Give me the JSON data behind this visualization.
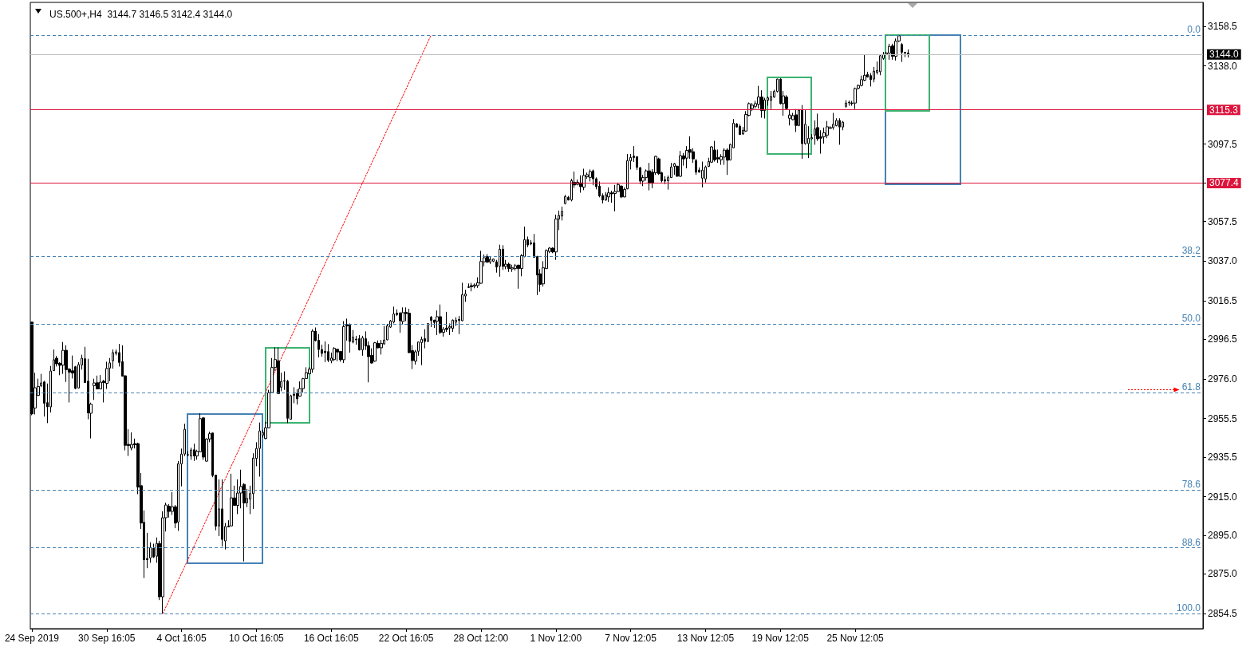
{
  "chart_data": {
    "type": "candlestick",
    "title": "US.500+,H4  3144.7 3146.5 3142.4 3144.0",
    "color": "#000000",
    "categories": [
      "24 Sep 2019",
      null,
      null,
      null,
      null,
      null,
      null,
      null,
      null,
      null,
      null,
      null,
      null,
      null,
      null,
      null,
      null,
      null,
      null,
      null,
      null,
      null,
      null,
      null,
      "30 Sep 16:05",
      null,
      null,
      null,
      null,
      null,
      null,
      null,
      null,
      null,
      null,
      null,
      null,
      null,
      null,
      null,
      null,
      null,
      null,
      null,
      null,
      null,
      null,
      null,
      "4 Oct 16:05",
      null,
      null,
      null,
      null,
      null,
      null,
      null,
      null,
      null,
      null,
      null,
      null,
      null,
      null,
      null,
      null,
      null,
      null,
      null,
      null,
      null,
      null,
      null,
      "10 Oct 16:05",
      null,
      null,
      null,
      null,
      null,
      null,
      null,
      null,
      null,
      null,
      null,
      null,
      null,
      null,
      null,
      null,
      null,
      null,
      null,
      null,
      null,
      null,
      null,
      "16 Oct 16:05",
      null,
      null,
      null,
      null,
      null,
      null,
      null,
      null,
      null,
      null,
      null,
      null,
      null,
      null,
      null,
      null,
      null,
      null,
      null,
      null,
      null,
      null,
      null,
      "22 Oct 16:05",
      null,
      null,
      null,
      null,
      null,
      null,
      null,
      null,
      null,
      null,
      null,
      null,
      null,
      null,
      null,
      null,
      null,
      null,
      null,
      null,
      null,
      null,
      null,
      "28 Oct 12:00",
      null,
      null,
      null,
      null,
      null,
      null,
      null,
      null,
      null,
      null,
      null,
      null,
      null,
      null,
      null,
      null,
      null,
      null,
      null,
      null,
      null,
      null,
      null,
      "1 Nov 12:00",
      null,
      null,
      null,
      null,
      null,
      null,
      null,
      null,
      null,
      null,
      null,
      null,
      null,
      null,
      null,
      null,
      null,
      null,
      null,
      null,
      null,
      null,
      null,
      "7 Nov 12:05",
      null,
      null,
      null,
      null,
      null,
      null,
      null,
      null,
      null,
      null,
      null,
      null,
      null,
      null,
      null,
      null,
      null,
      null,
      null,
      null,
      null,
      null,
      null,
      "13 Nov 12:05",
      null,
      null,
      null,
      null,
      null,
      null,
      null,
      null,
      null,
      null,
      null,
      null,
      null,
      null,
      null,
      null,
      null,
      null,
      null,
      null,
      null,
      null,
      null,
      "19 Nov 12:05",
      null,
      null,
      null,
      null,
      null,
      null,
      null,
      null,
      null,
      null,
      null,
      null,
      null,
      null,
      null,
      null,
      null,
      null,
      null,
      null,
      null,
      null,
      null,
      "25 Nov 12:05",
      null,
      null,
      null,
      null,
      null,
      null,
      null,
      null,
      null,
      null,
      null,
      null,
      null,
      null,
      null,
      null,
      null,
      null,
      null,
      null,
      null,
      null,
      null,
      null,
      null,
      null,
      null,
      null,
      null,
      null,
      null,
      null,
      null,
      null,
      null,
      null,
      null,
      null,
      null,
      null,
      null,
      null,
      null,
      null,
      null,
      null,
      null,
      null,
      null,
      null,
      null,
      null,
      null,
      null,
      null,
      null,
      null,
      null,
      null,
      null,
      null,
      null,
      null,
      null,
      null,
      null,
      null,
      null,
      null,
      null,
      null,
      null,
      null,
      null,
      null,
      null,
      null,
      null,
      null,
      null,
      null,
      null,
      null,
      null,
      null,
      null,
      null,
      null,
      null,
      null,
      null,
      null,
      null,
      null,
      null,
      null,
      null,
      null,
      null,
      null,
      null,
      null,
      null,
      null,
      null,
      null,
      null,
      null,
      null,
      null,
      null
    ],
    "ohlc": [
      [
        3005.4,
        3005.6,
        2957.2,
        2957.9
      ],
      [
        2960.9,
        2979.2,
        2957.6,
        2971.4
      ],
      [
        2967.5,
        2976.1,
        2967.1,
        2972.1
      ],
      [
        2972.5,
        2978.6,
        2971.7,
        2973.9
      ],
      [
        2974.4,
        2975.0,
        2956.5,
        2963.4
      ],
      [
        2963.7,
        2973.6,
        2953.1,
        2961.5
      ],
      [
        2961.5,
        2982.7,
        2958.6,
        2980.1
      ],
      [
        2980.3,
        2991.2,
        2980.1,
        2985.9
      ],
      [
        2986.7,
        2987.9,
        2982.4,
        2983.8
      ],
      [
        2984.1,
        2984.6,
        2977.9,
        2983.0
      ],
      [
        2983.1,
        2995.1,
        2978.6,
        2990.8
      ],
      [
        2990.8,
        2993.4,
        2974.4,
        2980.8
      ],
      [
        2981.0,
        2981.6,
        2963.8,
        2979.5
      ],
      [
        2980.2,
        2988.1,
        2976.2,
        2979.0
      ],
      [
        2982.3,
        2982.7,
        2970.6,
        2971.1
      ],
      [
        2971.3,
        2984.6,
        2971.0,
        2983.4
      ],
      [
        2983.2,
        2988.5,
        2980.8,
        2986.7
      ],
      [
        2986.4,
        2992.6,
        2973.9,
        2974.1
      ],
      [
        2974.8,
        2986.4,
        2955.1,
        2958.4
      ],
      [
        2958.2,
        2963.7,
        2945.2,
        2962.9
      ],
      [
        2972.5,
        2976.1,
        2965.1,
        2973.9
      ],
      [
        2974.0,
        2977.7,
        2970.6,
        2970.8
      ],
      [
        2970.8,
        2978.0,
        2970.6,
        2974.3
      ],
      [
        2974.8,
        2975.5,
        2963.8,
        2974.1
      ],
      [
        2973.7,
        2984.9,
        2970.8,
        2981.4
      ],
      [
        2981.6,
        2986.8,
        2974.8,
        2984.3
      ],
      [
        2985.4,
        2991.2,
        2981.3,
        2989.6
      ],
      [
        2989.2,
        2991.2,
        2988.2,
        2990.0
      ],
      [
        2989.6,
        2994.1,
        2982.4,
        2984.5
      ],
      [
        2985.0,
        2993.4,
        2977.2,
        2977.4
      ],
      [
        2977.6,
        2977.8,
        2939.0,
        2941.6
      ],
      [
        2942.1,
        2950.0,
        2936.1,
        2941.5
      ],
      [
        2940.3,
        2948.3,
        2939.0,
        2942.1
      ],
      [
        2942.5,
        2945.1,
        2940.0,
        2941.9
      ],
      [
        2942.5,
        2943.0,
        2916.3,
        2920.0
      ],
      [
        2920.7,
        2927.3,
        2898.3,
        2901.4
      ],
      [
        2901.7,
        2907.9,
        2872.9,
        2882.4
      ],
      [
        2883.0,
        2896.3,
        2878.0,
        2882.4
      ],
      [
        2883.3,
        2891.4,
        2880.8,
        2888.8
      ],
      [
        2888.4,
        2890.7,
        2883.3,
        2883.8
      ],
      [
        2884.2,
        2893.9,
        2880.8,
        2890.8
      ],
      [
        2890.8,
        2892.2,
        2861.5,
        2863.2
      ],
      [
        2863.2,
        2907.5,
        2854.5,
        2904.1
      ],
      [
        2904.1,
        2911.9,
        2897.0,
        2910.7
      ],
      [
        2910.1,
        2911.2,
        2904.2,
        2907.4
      ],
      [
        2907.4,
        2917.4,
        2905.6,
        2909.8
      ],
      [
        2909.8,
        2910.7,
        2898.7,
        2901.4
      ],
      [
        2901.9,
        2933.5,
        2897.3,
        2932.1
      ],
      [
        2932.0,
        2939.9,
        2920.4,
        2937.1
      ],
      [
        2937.1,
        2952.8,
        2936.1,
        2949.9
      ],
      [
        2936.6,
        2938.6,
        2935.9,
        2936.8
      ],
      [
        2936.1,
        2940.4,
        2934.1,
        2939.2
      ],
      [
        2939.3,
        2942.5,
        2933.5,
        2936.1
      ],
      [
        2936.1,
        2939.3,
        2934.2,
        2938.5
      ],
      [
        2938.3,
        2958.2,
        2938.1,
        2955.4
      ],
      [
        2955.8,
        2956.2,
        2934.1,
        2935.5
      ],
      [
        2933.4,
        2945.2,
        2933.2,
        2944.9
      ],
      [
        2944.9,
        2948.7,
        2943.2,
        2947.6
      ],
      [
        2948.0,
        2948.2,
        2925.1,
        2926.0
      ],
      [
        2926.2,
        2926.4,
        2897.6,
        2899.8
      ],
      [
        2899.9,
        2924.0,
        2894.6,
        2908.7
      ],
      [
        2908.7,
        2924.0,
        2889.3,
        2892.9
      ],
      [
        2892.1,
        2901.4,
        2887.7,
        2899.6
      ],
      [
        2899.9,
        2902.8,
        2899.2,
        2899.4
      ],
      [
        2899.9,
        2926.9,
        2899.7,
        2914.4
      ],
      [
        2914.4,
        2920.7,
        2910.3,
        2910.5
      ],
      [
        2910.5,
        2924.0,
        2906.0,
        2916.9
      ],
      [
        2916.9,
        2929.0,
        2909.0,
        2920.3
      ],
      [
        2921.4,
        2922.0,
        2881.5,
        2911.8
      ],
      [
        2911.9,
        2919.1,
        2909.6,
        2914.1
      ],
      [
        2913.8,
        2920.7,
        2906.0,
        2916.6
      ],
      [
        2916.6,
        2937.5,
        2908.6,
        2935.0
      ],
      [
        2934.8,
        2943.2,
        2930.8,
        2940.0
      ],
      [
        2940.0,
        2953.4,
        2925.4,
        2949.1
      ],
      [
        2946.9,
        2949.6,
        2945.5,
        2948.3
      ],
      [
        2945.1,
        2953.8,
        2944.8,
        2950.7
      ],
      [
        2950.7,
        2970.3,
        2950.5,
        2968.9
      ],
      [
        2968.9,
        2986.8,
        2968.7,
        2981.9
      ],
      [
        2981.9,
        2992.3,
        2979.9,
        2986.0
      ],
      [
        2985.4,
        2992.3,
        2968.1,
        2968.4
      ],
      [
        2971.7,
        2979.2,
        2969.6,
        2974.7
      ],
      [
        2974.8,
        2979.9,
        2970.3,
        2975.1
      ],
      [
        2974.8,
        2975.5,
        2953.1,
        2955.6
      ],
      [
        2955.1,
        2967.8,
        2954.9,
        2967.3
      ],
      [
        2968.1,
        2971.7,
        2963.4,
        2967.5
      ],
      [
        2968.5,
        2970.6,
        2962.7,
        2965.7
      ],
      [
        2967.1,
        2974.7,
        2966.8,
        2971.0
      ],
      [
        2971.0,
        2976.5,
        2968.9,
        2976.1
      ],
      [
        2976.2,
        2982.0,
        2976.0,
        2979.2
      ],
      [
        2978.6,
        2982.0,
        2978.4,
        2981.0
      ],
      [
        2981.0,
        3001.7,
        2979.2,
        3000.7
      ],
      [
        3000.7,
        3002.6,
        2995.4,
        2995.8
      ],
      [
        2996.0,
        2999.2,
        2987.1,
        2991.2
      ],
      [
        2991.2,
        2993.7,
        2987.5,
        2989.2
      ],
      [
        2990.3,
        2995.4,
        2984.7,
        2989.6
      ],
      [
        2990.1,
        2994.0,
        2984.7,
        2985.7
      ],
      [
        2985.4,
        2989.6,
        2984.1,
        2986.8
      ],
      [
        2986.0,
        2992.4,
        2985.2,
        2991.8
      ],
      [
        2991.3,
        2991.5,
        2985.2,
        2989.9
      ],
      [
        2990.2,
        2990.4,
        2984.9,
        2985.9
      ],
      [
        2985.9,
        3005.9,
        2984.2,
        3003.1
      ],
      [
        3004.1,
        3007.2,
        2995.8,
        3003.4
      ],
      [
        3003.8,
        3004.7,
        2989.6,
        2995.4
      ],
      [
        2995.1,
        3001.3,
        2994.4,
        2997.6
      ],
      [
        2996.6,
        2998.3,
        2993.7,
        2996.2
      ],
      [
        2996.8,
        2998.7,
        2990.7,
        2991.0
      ],
      [
        2991.0,
        2998.3,
        2988.0,
        2997.2
      ],
      [
        2996.8,
        3000.6,
        2991.0,
        2993.0
      ],
      [
        2993.2,
        2995.4,
        2974.2,
        2987.5
      ],
      [
        2988.2,
        2991.8,
        2984.0,
        2984.2
      ],
      [
        2985.2,
        2995.1,
        2984.9,
        2994.7
      ],
      [
        2994.4,
        2995.9,
        2991.8,
        2992.1
      ],
      [
        2992.1,
        2996.2,
        2988.6,
        2994.4
      ],
      [
        2994.1,
        3003.4,
        2993.7,
        2996.1
      ],
      [
        2996.2,
        3004.5,
        2996.0,
        3003.5
      ],
      [
        3002.8,
        3006.5,
        3002.4,
        3006.0
      ],
      [
        3005.4,
        3013.4,
        3004.7,
        3009.6
      ],
      [
        3010.0,
        3012.0,
        3008.6,
        3009.3
      ],
      [
        3010.0,
        3010.7,
        2999.9,
        3006.1
      ],
      [
        3005.7,
        3013.0,
        3004.2,
        3010.3
      ],
      [
        3010.5,
        3013.0,
        3005.9,
        3009.8
      ],
      [
        3010.0,
        3012.3,
        2989.4,
        2989.6
      ],
      [
        2990.6,
        2993.5,
        2981.1,
        2985.5
      ],
      [
        2985.2,
        2991.0,
        2983.4,
        2990.0
      ],
      [
        2990.3,
        2995.3,
        2988.0,
        2995.1
      ],
      [
        2994.8,
        2997.9,
        2983.1,
        2996.5
      ],
      [
        2996.8,
        3001.7,
        2991.8,
        2995.4
      ],
      [
        2995.4,
        3004.9,
        2995.2,
        3004.6
      ],
      [
        3007.9,
        3008.6,
        3002.8,
        3006.3
      ],
      [
        3006.4,
        3006.6,
        3002.4,
        3005.2
      ],
      [
        3005.9,
        3011.4,
        2998.7,
        3008.2
      ],
      [
        3008.2,
        3014.5,
        2999.2,
        3000.1
      ],
      [
        3000.1,
        3002.8,
        2997.9,
        3001.7
      ],
      [
        3002.3,
        3010.7,
        3000.3,
        3001.6
      ],
      [
        3002.4,
        3004.7,
        2998.7,
        3003.1
      ],
      [
        3002.1,
        3006.8,
        3000.3,
        3006.4
      ],
      [
        3005.3,
        3007.9,
        3003.4,
        3006.4
      ],
      [
        3006.8,
        3008.6,
        2999.2,
        3006.3
      ],
      [
        3006.1,
        3025.8,
        3005.9,
        3019.6
      ],
      [
        3018.9,
        3022.1,
        3015.9,
        3020.0
      ],
      [
        3023.3,
        3025.4,
        3023.1,
        3023.7
      ],
      [
        3024.3,
        3025.7,
        3021.3,
        3023.7
      ],
      [
        3024.0,
        3025.4,
        3022.9,
        3024.6
      ],
      [
        3024.3,
        3028.6,
        3023.1,
        3025.8
      ],
      [
        3025.5,
        3042.3,
        3025.3,
        3036.8
      ],
      [
        3036.6,
        3040.4,
        3034.2,
        3038.7
      ],
      [
        3039.3,
        3040.6,
        3036.0,
        3036.5
      ],
      [
        3036.5,
        3039.3,
        3035.5,
        3037.9
      ],
      [
        3036.9,
        3038.3,
        3036.5,
        3038.0
      ],
      [
        3036.6,
        3037.6,
        3031.0,
        3033.9
      ],
      [
        3034.3,
        3045.5,
        3028.9,
        3043.1
      ],
      [
        3043.1,
        3045.2,
        3032.4,
        3034.2
      ],
      [
        3034.2,
        3037.6,
        3032.8,
        3035.4
      ],
      [
        3035.4,
        3036.2,
        3031.4,
        3033.1
      ],
      [
        3032.9,
        3035.1,
        3031.4,
        3033.5
      ],
      [
        3033.1,
        3035.5,
        3032.1,
        3034.6
      ],
      [
        3034.9,
        3035.1,
        3022.7,
        3033.1
      ],
      [
        3033.1,
        3040.6,
        3029.1,
        3039.8
      ],
      [
        3039.3,
        3054.8,
        3039.0,
        3048.1
      ],
      [
        3048.1,
        3049.7,
        3044.2,
        3045.3
      ],
      [
        3045.9,
        3047.9,
        3045.2,
        3046.5
      ],
      [
        3046.4,
        3051.0,
        3038.7,
        3039.0
      ],
      [
        3039.3,
        3039.7,
        3019.4,
        3029.8
      ],
      [
        3030.4,
        3032.8,
        3021.1,
        3024.9
      ],
      [
        3025.2,
        3036.9,
        3023.8,
        3033.5
      ],
      [
        3033.1,
        3043.1,
        3032.9,
        3042.4
      ],
      [
        3042.0,
        3044.2,
        3041.1,
        3043.7
      ],
      [
        3043.7,
        3044.1,
        3041.1,
        3041.7
      ],
      [
        3041.7,
        3061.0,
        3037.6,
        3058.8
      ],
      [
        3058.7,
        3063.1,
        3053.0,
        3060.6
      ],
      [
        3060.3,
        3065.2,
        3058.0,
        3062.7
      ],
      [
        3066.8,
        3071.3,
        3066.3,
        3070.4
      ],
      [
        3070.0,
        3070.7,
        3068.4,
        3068.6
      ],
      [
        3068.6,
        3079.6,
        3067.9,
        3078.6
      ],
      [
        3077.8,
        3083.3,
        3074.8,
        3076.4
      ],
      [
        3076.7,
        3079.2,
        3076.2,
        3077.8
      ],
      [
        3077.5,
        3081.4,
        3072.4,
        3075.5
      ],
      [
        3075.2,
        3084.8,
        3073.7,
        3081.3
      ],
      [
        3080.6,
        3082.8,
        3079.6,
        3081.7
      ],
      [
        3080.3,
        3084.4,
        3078.2,
        3083.3
      ],
      [
        3083.7,
        3084.4,
        3076.2,
        3079.6
      ],
      [
        3079.6,
        3080.3,
        3074.1,
        3075.5
      ],
      [
        3075.8,
        3078.2,
        3070.0,
        3070.7
      ],
      [
        3070.9,
        3072.0,
        3066.8,
        3068.6
      ],
      [
        3068.6,
        3072.7,
        3068.2,
        3071.3
      ],
      [
        3070.2,
        3075.1,
        3067.6,
        3072.3
      ],
      [
        3072.3,
        3073.4,
        3067.2,
        3071.8
      ],
      [
        3072.0,
        3076.4,
        3062.7,
        3073.0
      ],
      [
        3073.0,
        3077.3,
        3072.7,
        3076.6
      ],
      [
        3075.8,
        3076.2,
        3069.6,
        3070.2
      ],
      [
        3070.2,
        3075.1,
        3070.0,
        3074.1
      ],
      [
        3074.4,
        3092.4,
        3074.1,
        3089.0
      ],
      [
        3088.8,
        3092.4,
        3084.4,
        3090.6
      ],
      [
        3091.3,
        3096.5,
        3088.3,
        3090.6
      ],
      [
        3091.0,
        3091.2,
        3084.1,
        3085.5
      ],
      [
        3085.3,
        3085.7,
        3076.8,
        3078.4
      ],
      [
        3078.4,
        3081.6,
        3075.8,
        3080.2
      ],
      [
        3080.2,
        3084.4,
        3078.6,
        3083.7
      ],
      [
        3083.7,
        3087.8,
        3073.6,
        3077.2
      ],
      [
        3083.0,
        3084.6,
        3074.7,
        3077.2
      ],
      [
        3082.7,
        3091.5,
        3081.6,
        3091.2
      ],
      [
        3089.9,
        3090.5,
        3081.6,
        3082.3
      ],
      [
        3082.7,
        3083.2,
        3077.7,
        3078.6
      ],
      [
        3079.1,
        3080.9,
        3076.8,
        3078.4
      ],
      [
        3078.6,
        3081.3,
        3074.0,
        3080.2
      ],
      [
        3080.2,
        3087.8,
        3080.0,
        3085.7
      ],
      [
        3086.0,
        3087.8,
        3081.6,
        3087.4
      ],
      [
        3086.1,
        3086.4,
        3080.7,
        3080.9
      ],
      [
        3080.9,
        3094.0,
        3080.5,
        3091.5
      ],
      [
        3091.5,
        3092.9,
        3086.4,
        3089.9
      ],
      [
        3090.3,
        3096.5,
        3085.0,
        3094.3
      ],
      [
        3094.7,
        3101.6,
        3089.9,
        3093.3
      ],
      [
        3093.6,
        3095.4,
        3087.8,
        3089.9
      ],
      [
        3089.0,
        3089.9,
        3081.6,
        3083.0
      ],
      [
        3084.1,
        3085.5,
        3082.8,
        3083.0
      ],
      [
        3079.9,
        3088.5,
        3075.1,
        3084.1
      ],
      [
        3079.5,
        3086.4,
        3077.7,
        3085.7
      ],
      [
        3086.0,
        3090.5,
        3085.7,
        3088.5
      ],
      [
        3088.2,
        3096.5,
        3087.8,
        3096.1
      ],
      [
        3094.5,
        3099.2,
        3088.5,
        3089.4
      ],
      [
        3090.5,
        3094.7,
        3087.8,
        3089.9
      ],
      [
        3089.4,
        3092.3,
        3086.8,
        3091.0
      ],
      [
        3090.8,
        3095.4,
        3086.8,
        3094.4
      ],
      [
        3094.5,
        3095.4,
        3081.6,
        3089.2
      ],
      [
        3089.3,
        3097.8,
        3089.1,
        3097.4
      ],
      [
        3095.6,
        3110.5,
        3095.4,
        3108.4
      ],
      [
        3108.0,
        3108.4,
        3106.1,
        3106.4
      ],
      [
        3106.7,
        3107.8,
        3102.3,
        3102.5
      ],
      [
        3102.8,
        3106.4,
        3102.3,
        3104.7
      ],
      [
        3104.3,
        3114.6,
        3103.9,
        3112.9
      ],
      [
        3112.4,
        3119.1,
        3111.9,
        3118.5
      ],
      [
        3116.0,
        3118.8,
        3114.6,
        3117.7
      ],
      [
        3117.1,
        3119.9,
        3116.0,
        3118.5
      ],
      [
        3118.1,
        3127.7,
        3116.0,
        3121.9
      ],
      [
        3121.9,
        3125.4,
        3111.2,
        3114.9
      ],
      [
        3114.9,
        3121.5,
        3110.8,
        3120.4
      ],
      [
        3120.2,
        3122.2,
        3117.4,
        3121.5
      ],
      [
        3120.2,
        3125.0,
        3115.7,
        3122.2
      ],
      [
        3121.9,
        3125.7,
        3121.5,
        3124.8
      ],
      [
        3124.8,
        3131.4,
        3124.3,
        3131.2
      ],
      [
        3131.2,
        3131.6,
        3118.1,
        3118.5
      ],
      [
        3118.5,
        3125.0,
        3112.2,
        3122.5
      ],
      [
        3121.9,
        3122.9,
        3115.3,
        3116.0
      ],
      [
        3110.9,
        3115.3,
        3107.2,
        3112.6
      ],
      [
        3110.2,
        3113.7,
        3109.9,
        3112.3
      ],
      [
        3112.7,
        3115.7,
        3103.8,
        3107.2
      ],
      [
        3107.2,
        3115.7,
        3106.8,
        3115.1
      ],
      [
        3115.1,
        3117.8,
        3089.9,
        3097.8
      ],
      [
        3097.8,
        3115.1,
        3097.2,
        3107.8
      ],
      [
        3097.8,
        3106.8,
        3090.3,
        3100.6
      ],
      [
        3100.3,
        3102.7,
        3099.9,
        3100.9
      ],
      [
        3102.2,
        3109.8,
        3097.2,
        3105.4
      ],
      [
        3106.1,
        3113.3,
        3099.2,
        3100.3
      ],
      [
        3101.3,
        3104.7,
        3092.6,
        3100.6
      ],
      [
        3101.3,
        3106.1,
        3097.8,
        3103.4
      ],
      [
        3102.2,
        3109.5,
        3100.6,
        3106.5
      ],
      [
        3105.7,
        3106.8,
        3105.4,
        3106.1
      ],
      [
        3106.1,
        3113.7,
        3105.0,
        3107.8
      ],
      [
        3107.1,
        3110.9,
        3106.7,
        3109.8
      ],
      [
        3109.8,
        3110.9,
        3097.2,
        3106.4
      ],
      [
        3106.4,
        3109.5,
        3104.7,
        3108.9
      ],
      [
        3117.1,
        3120.3,
        3116.4,
        3118.8
      ],
      [
        3118.9,
        3120.1,
        3117.4,
        3119.2
      ],
      [
        3118.8,
        3119.9,
        3117.4,
        3118.5
      ],
      [
        3118.8,
        3126.8,
        3115.7,
        3126.3
      ],
      [
        3126.5,
        3128.4,
        3125.7,
        3127.9
      ],
      [
        3127.9,
        3133.0,
        3127.4,
        3130.9
      ],
      [
        3130.6,
        3144.0,
        3130.2,
        3133.2
      ],
      [
        3133.6,
        3135.0,
        3132.0,
        3132.3
      ],
      [
        3133.0,
        3134.3,
        3127.4,
        3130.9
      ],
      [
        3131.2,
        3137.5,
        3129.5,
        3135.3
      ],
      [
        3134.7,
        3140.3,
        3133.6,
        3135.7
      ],
      [
        3135.0,
        3144.0,
        3133.2,
        3143.3
      ],
      [
        3141.9,
        3145.3,
        3141.2,
        3144.0
      ],
      [
        3144.0,
        3145.3,
        3143.6,
        3144.7
      ],
      [
        3144.7,
        3149.5,
        3141.2,
        3148.1
      ],
      [
        3148.4,
        3149.5,
        3141.2,
        3143.0
      ],
      [
        3143.0,
        3152.2,
        3140.8,
        3150.9
      ],
      [
        3150.9,
        3154.0,
        3150.4,
        3153.6
      ],
      [
        3149.1,
        3149.9,
        3140.1,
        3145.1
      ],
      [
        3145.1,
        3145.3,
        3142.6,
        3144.7
      ],
      [
        3144.7,
        3146.5,
        3142.4,
        3144.0
      ],
      null,
      null,
      null,
      null,
      null,
      null,
      null,
      null,
      null,
      null,
      null,
      null,
      null,
      null,
      null,
      null,
      null,
      null,
      null,
      null,
      null,
      null,
      null,
      null,
      null,
      null,
      null,
      null,
      null,
      null,
      null,
      null,
      null,
      null,
      null,
      null,
      null,
      null,
      null,
      null,
      null,
      null,
      null,
      null,
      null,
      null,
      null,
      null,
      null,
      null,
      null,
      null,
      null,
      null,
      null,
      null,
      null,
      null,
      null,
      null,
      null,
      null,
      null,
      null,
      null,
      null,
      null,
      null,
      null,
      null,
      null,
      null,
      null,
      null,
      null,
      null,
      null,
      null,
      null,
      null,
      null,
      null,
      null,
      null,
      null,
      null,
      null,
      null,
      null,
      null,
      null,
      null,
      null,
      null
    ],
    "series": [
      {
        "type": "line",
        "color": "#ff0000",
        "line_style": "dotted",
        "marker": "none",
        "values": [
          null,
          null,
          null,
          null,
          null,
          null,
          null,
          null,
          null,
          null,
          null,
          null,
          null,
          null,
          null,
          null,
          null,
          null,
          null,
          null,
          null,
          null,
          null,
          null,
          null,
          null,
          null,
          null,
          null,
          null,
          null,
          null,
          null,
          null,
          null,
          null,
          null,
          null,
          null,
          null,
          null,
          null,
          2854.5,
          null,
          null,
          null,
          null,
          null,
          null,
          null,
          null,
          null,
          null,
          null,
          null,
          null,
          null,
          null,
          null,
          null,
          null,
          null,
          null,
          null,
          null,
          null,
          null,
          null,
          null,
          null,
          null,
          null,
          null,
          null,
          null,
          null,
          null,
          null,
          null,
          null,
          null,
          null,
          null,
          null,
          null,
          null,
          null,
          null,
          null,
          null,
          null,
          null,
          null,
          null,
          null,
          null,
          null,
          null,
          null,
          null,
          null,
          null,
          null,
          null,
          null,
          null,
          null,
          null,
          null,
          null,
          null,
          null,
          null,
          null,
          null,
          null,
          null,
          null,
          null,
          null,
          null,
          null,
          null,
          null,
          null,
          null,
          null,
          null,
          3154.0,
          null,
          null,
          null,
          null,
          null,
          null,
          null,
          null,
          null,
          null,
          null,
          null,
          null,
          null,
          null,
          null,
          null,
          null,
          null,
          null,
          null,
          null,
          null,
          null,
          null,
          null,
          null,
          null,
          null,
          null,
          null,
          null,
          null,
          null,
          null,
          null,
          null,
          null,
          null,
          null,
          null,
          null,
          null,
          null,
          null,
          null,
          null,
          null,
          null,
          null,
          null,
          null,
          null,
          null,
          null,
          null,
          null,
          null,
          null,
          null,
          null,
          null,
          null,
          null,
          null,
          null,
          null,
          null,
          null,
          null,
          null,
          null,
          null,
          null,
          null,
          null,
          null,
          null,
          null,
          null,
          null,
          null,
          null,
          null,
          null,
          null,
          null,
          null,
          null,
          null,
          null,
          null,
          null,
          null,
          null,
          null,
          null,
          null,
          null,
          null,
          null,
          null,
          null,
          null,
          null,
          null,
          null,
          null,
          null,
          null,
          null,
          null,
          null,
          null,
          null,
          null,
          null,
          null,
          null,
          null,
          null,
          null,
          null,
          null,
          null,
          null,
          null,
          null,
          null,
          null,
          null,
          null,
          null,
          null,
          null,
          null,
          null,
          null,
          null,
          null,
          null,
          null,
          null,
          null,
          null,
          null,
          null,
          null,
          null,
          null,
          null,
          null,
          null,
          null,
          null,
          null,
          null,
          null,
          null,
          null,
          null,
          null,
          null,
          null,
          null,
          null,
          null,
          null,
          null,
          null,
          null,
          null,
          null,
          null,
          null,
          null,
          null,
          null,
          null,
          null,
          null,
          null,
          null,
          null,
          null,
          null,
          null,
          null,
          null,
          null,
          null,
          null,
          null,
          null,
          null,
          null,
          null,
          null,
          null,
          null,
          null,
          null,
          null,
          null,
          null,
          null,
          null,
          null,
          null,
          null,
          null,
          null,
          null,
          null,
          null,
          null,
          null,
          null,
          null,
          null,
          null,
          null,
          null,
          null,
          null,
          null,
          null,
          null,
          null,
          null,
          null,
          null,
          null,
          null,
          null,
          null,
          null,
          null,
          null,
          null,
          null,
          null,
          null,
          null,
          null,
          null,
          null
        ]
      }
    ],
    "ylim": [
      2846.7,
      3170.9
    ],
    "yticks": [
      {
        "value": 2854.5,
        "label": "2854.5"
      },
      {
        "value": 2875,
        "label": "2875.0"
      },
      {
        "value": 2895,
        "label": "2895.0"
      },
      {
        "value": 2915,
        "label": "2915.0"
      },
      {
        "value": 2935.5,
        "label": "2935.5"
      },
      {
        "value": 2955.5,
        "label": "2955.5"
      },
      {
        "value": 2976,
        "label": "2976.0"
      },
      {
        "value": 2996.5,
        "label": "2996.5"
      },
      {
        "value": 3016.5,
        "label": "3016.5"
      },
      {
        "value": 3037,
        "label": "3037.0"
      },
      {
        "value": 3057.5,
        "label": "3057.5"
      },
      {
        "value": 3077.5,
        "label": null
      },
      {
        "value": 3097.5,
        "label": "3097.5"
      },
      {
        "value": 3138,
        "label": "3138.0"
      },
      {
        "value": 3158.5,
        "label": "3158.5"
      }
    ],
    "ref_lines": [
      {
        "axis": "y",
        "value": 3154.0,
        "color": "#4682b4",
        "line_style": "dashed"
      },
      {
        "axis": "y",
        "value": 3039.6,
        "color": "#4682b4",
        "line_style": "dashed"
      },
      {
        "axis": "y",
        "value": 3004.3,
        "color": "#4682b4",
        "line_style": "dashed"
      },
      {
        "axis": "y",
        "value": 2968.9,
        "color": "#4682b4",
        "line_style": "dashed"
      },
      {
        "axis": "y",
        "value": 2918.6,
        "color": "#4682b4",
        "line_style": "dashed"
      },
      {
        "axis": "y",
        "value": 2888.6,
        "color": "#4682b4",
        "line_style": "dashed"
      },
      {
        "axis": "y",
        "value": 2854.5,
        "color": "#4682b4",
        "line_style": "dashed"
      },
      {
        "axis": "y",
        "value": 3115.3,
        "label": "3115.3",
        "color": "#dc143c",
        "line_style": "solid"
      },
      {
        "axis": "y",
        "value": 3077.4,
        "label": "3077.4",
        "color": "#dc143c",
        "line_style": "solid"
      },
      {
        "axis": "y",
        "value": 3144.0,
        "label": "3144.0",
        "color": "#c0c0c0",
        "line_style": "solid"
      }
    ],
    "annotations": [
      {
        "text": "0.0",
        "y": 3154.0
      },
      {
        "text": "38.2",
        "y": 3039.6
      },
      {
        "text": "50.0",
        "y": 3004.3
      },
      {
        "text": "61.8",
        "y": 2968.9
      },
      {
        "text": "78.6",
        "y": 2918.6
      },
      {
        "text": "88.6",
        "y": 2888.6
      },
      {
        "text": "100.0",
        "y": 2854.5
      }
    ]
  }
}
